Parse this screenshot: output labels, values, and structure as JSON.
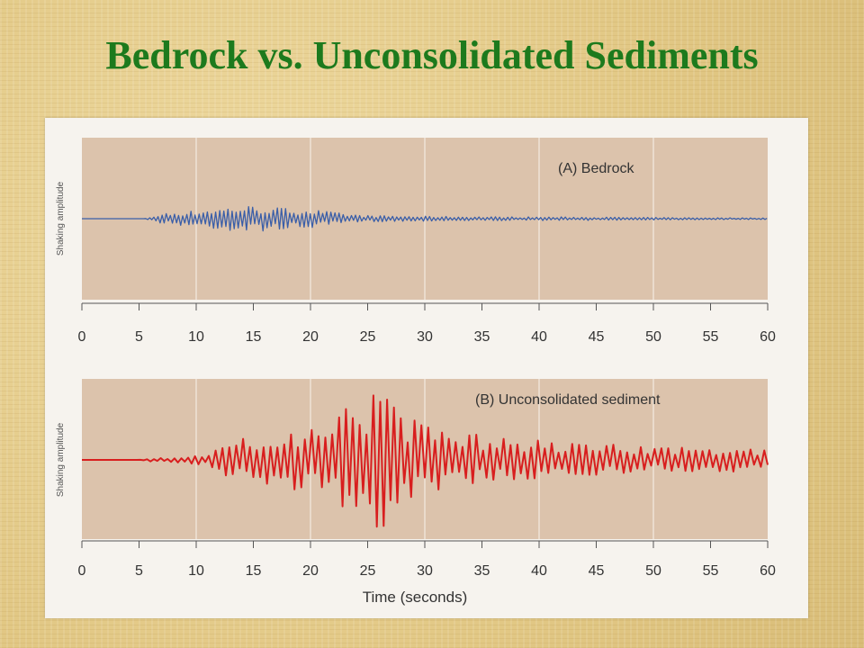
{
  "title": "Bedrock vs. Unconsolidated Sediments",
  "colors": {
    "title": "#1d7a1d",
    "plot_background": "#dcc3ac",
    "grid": "#f3ebe2",
    "bedrock_trace": "#3a5ea8",
    "sediment_trace": "#d81e1e"
  },
  "chart_data": [
    {
      "type": "line",
      "title": "(A)  Bedrock",
      "xlabel": "",
      "ylabel": "Shaking amplitude",
      "xlim": [
        0,
        60
      ],
      "ylim": [
        -10,
        10
      ],
      "grid": true,
      "x_tick_labels": [
        "0",
        "5",
        "10",
        "15",
        "20",
        "25",
        "30",
        "35",
        "40",
        "45",
        "50",
        "55",
        "60"
      ],
      "series": [
        {
          "color": "#3a5ea8",
          "x": [
            0,
            5.5,
            6.2,
            7,
            8,
            9,
            10,
            11,
            12,
            13,
            14,
            15,
            16,
            17,
            18,
            19,
            20,
            21,
            22,
            23,
            24,
            25,
            27,
            30,
            35,
            40,
            45,
            50,
            55,
            60
          ],
          "y": [
            0,
            0,
            0.3,
            0.6,
            0.8,
            0.9,
            1.0,
            1.2,
            1.3,
            1.5,
            1.6,
            1.6,
            1.5,
            1.4,
            1.3,
            1.3,
            1.2,
            1.0,
            0.8,
            0.6,
            0.5,
            0.4,
            0.35,
            0.3,
            0.25,
            0.22,
            0.2,
            0.15,
            0.12,
            0.1
          ]
        }
      ]
    },
    {
      "type": "line",
      "title": "(B)  Unconsolidated sediment",
      "xlabel": "Time (seconds)",
      "ylabel": "Shaking amplitude",
      "xlim": [
        0,
        60
      ],
      "ylim": [
        -10,
        10
      ],
      "grid": true,
      "x_tick_labels": [
        "0",
        "5",
        "10",
        "15",
        "20",
        "25",
        "30",
        "35",
        "40",
        "45",
        "50",
        "55",
        "60"
      ],
      "series": [
        {
          "color": "#d81e1e",
          "x": [
            0,
            5,
            6,
            7,
            8,
            9,
            10,
            11,
            12,
            13,
            14,
            15,
            16,
            17,
            18,
            19,
            20,
            21,
            22,
            23,
            24,
            25,
            26,
            27,
            28,
            29,
            30,
            32,
            34,
            36,
            38,
            40,
            42,
            44,
            46,
            48,
            50,
            52,
            54,
            56,
            58,
            60
          ],
          "y": [
            0,
            0,
            0.2,
            0.3,
            0.3,
            0.4,
            0.5,
            0.8,
            1.4,
            3.0,
            3.0,
            3.0,
            3.2,
            4.0,
            4.5,
            4.0,
            4.5,
            5.0,
            5.5,
            6.5,
            7.0,
            8.0,
            8.5,
            8.0,
            6.0,
            5.0,
            4.5,
            3.5,
            3.2,
            3.0,
            2.7,
            2.5,
            2.3,
            2.2,
            2.0,
            1.8,
            1.7,
            1.6,
            1.5,
            1.5,
            1.5,
            1.5
          ]
        }
      ]
    }
  ]
}
